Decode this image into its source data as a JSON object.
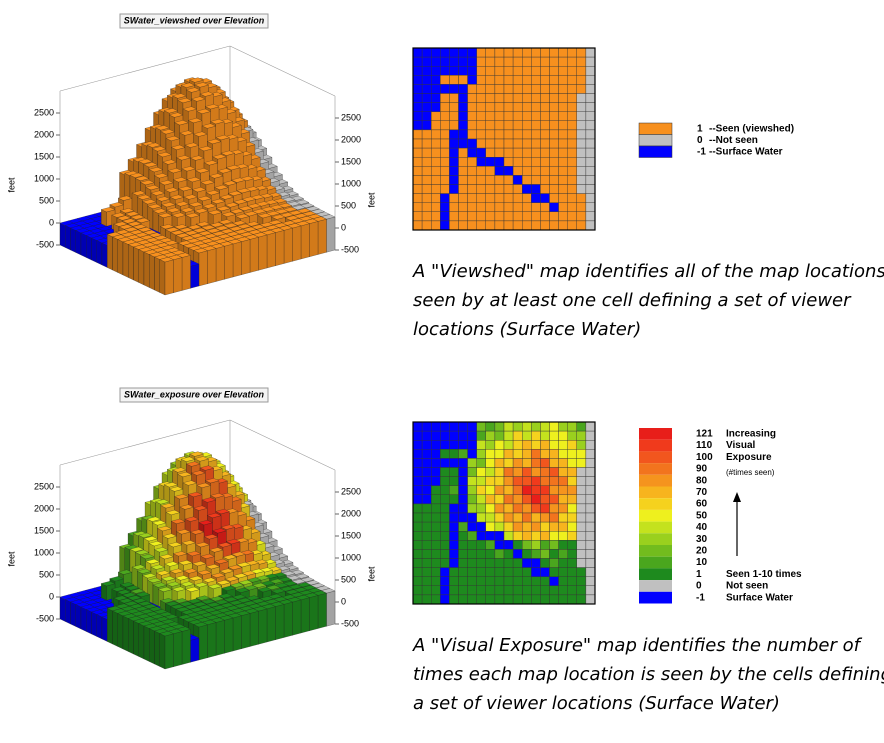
{
  "panels": [
    {
      "plot_title": "SWater_viewshed over Elevation",
      "z_axis_label": "feet",
      "z_ticks": [
        2500,
        2000,
        1500,
        1000,
        500,
        0,
        -500
      ],
      "legend": [
        {
          "value": "1",
          "label": "--Seen (viewshed)",
          "color": "#f7901e"
        },
        {
          "value": "0",
          "label": "--Not seen",
          "color": "#c0c0c0"
        },
        {
          "value": "-1",
          "label": "--Surface Water",
          "color": "#0000ff"
        }
      ],
      "caption": [
        "A \"Viewshed\" map identifies all of the map locations",
        "seen by at least one cell defining a set of viewer",
        "locations (Surface Water)"
      ]
    },
    {
      "plot_title": "SWater_exposure over Elevation",
      "z_axis_label": "feet",
      "z_ticks": [
        2500,
        2000,
        1500,
        1000,
        500,
        0,
        -500
      ],
      "legend": [
        {
          "value": 121,
          "label": "Increasing",
          "color": "#e81e1a"
        },
        {
          "value": 110,
          "label": "Visual",
          "color": "#f03a1c"
        },
        {
          "value": 100,
          "label": "Exposure",
          "color": "#f2561e"
        },
        {
          "value": 90,
          "color": "#f2741e"
        },
        {
          "value": 80,
          "color": "#f5941e"
        },
        {
          "value": 70,
          "color": "#f7b41e"
        },
        {
          "value": 60,
          "color": "#f5d21e"
        },
        {
          "value": 50,
          "color": "#eef01e"
        },
        {
          "value": 40,
          "color": "#c4e21e"
        },
        {
          "value": 30,
          "color": "#9ad01e"
        },
        {
          "value": 20,
          "color": "#72bc1e"
        },
        {
          "value": 10,
          "color": "#4aa61e"
        },
        {
          "value": 1,
          "label": "Seen 1-10 times",
          "color": "#1e8a1e"
        },
        {
          "value": 0,
          "label": "Not seen",
          "color": "#c0c0c0"
        },
        {
          "value": -1,
          "label": "Surface Water",
          "color": "#0000ff"
        }
      ],
      "note": "(#times seen)",
      "caption": [
        "A \"Visual Exposure\" map identifies the number of",
        "times each map location is seen by the cells defining",
        "a set of viewer locations (Surface Water)"
      ]
    }
  ]
}
